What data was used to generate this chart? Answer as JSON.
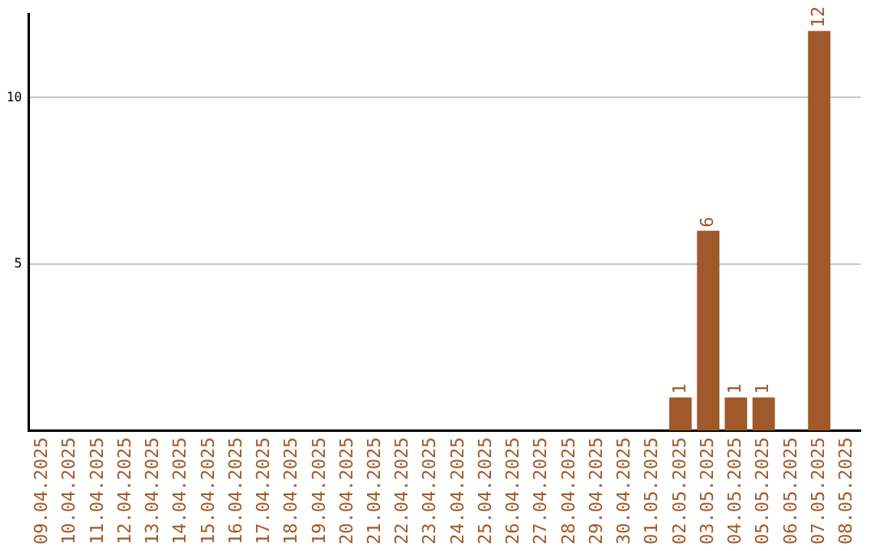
{
  "chart_data": {
    "type": "bar",
    "categories": [
      "09.04.2025",
      "10.04.2025",
      "11.04.2025",
      "12.04.2025",
      "13.04.2025",
      "14.04.2025",
      "15.04.2025",
      "16.04.2025",
      "17.04.2025",
      "18.04.2025",
      "19.04.2025",
      "20.04.2025",
      "21.04.2025",
      "22.04.2025",
      "23.04.2025",
      "24.04.2025",
      "25.04.2025",
      "26.04.2025",
      "27.04.2025",
      "28.04.2025",
      "29.04.2025",
      "30.04.2025",
      "01.05.2025",
      "02.05.2025",
      "03.05.2025",
      "04.05.2025",
      "05.05.2025",
      "06.05.2025",
      "07.05.2025",
      "08.05.2025"
    ],
    "values": [
      0,
      0,
      0,
      0,
      0,
      0,
      0,
      0,
      0,
      0,
      0,
      0,
      0,
      0,
      0,
      0,
      0,
      0,
      0,
      0,
      0,
      0,
      0,
      1,
      6,
      1,
      1,
      0,
      12,
      0
    ],
    "value_labels": [
      null,
      null,
      null,
      null,
      null,
      null,
      null,
      null,
      null,
      null,
      null,
      null,
      null,
      null,
      null,
      null,
      null,
      null,
      null,
      null,
      null,
      null,
      null,
      "1",
      "6",
      "1",
      "1",
      null,
      "12",
      null
    ],
    "color": "#a0592a",
    "ylim": [
      0,
      12.5
    ],
    "yticks": [
      5,
      10
    ],
    "grid": "y",
    "legend": false
  }
}
